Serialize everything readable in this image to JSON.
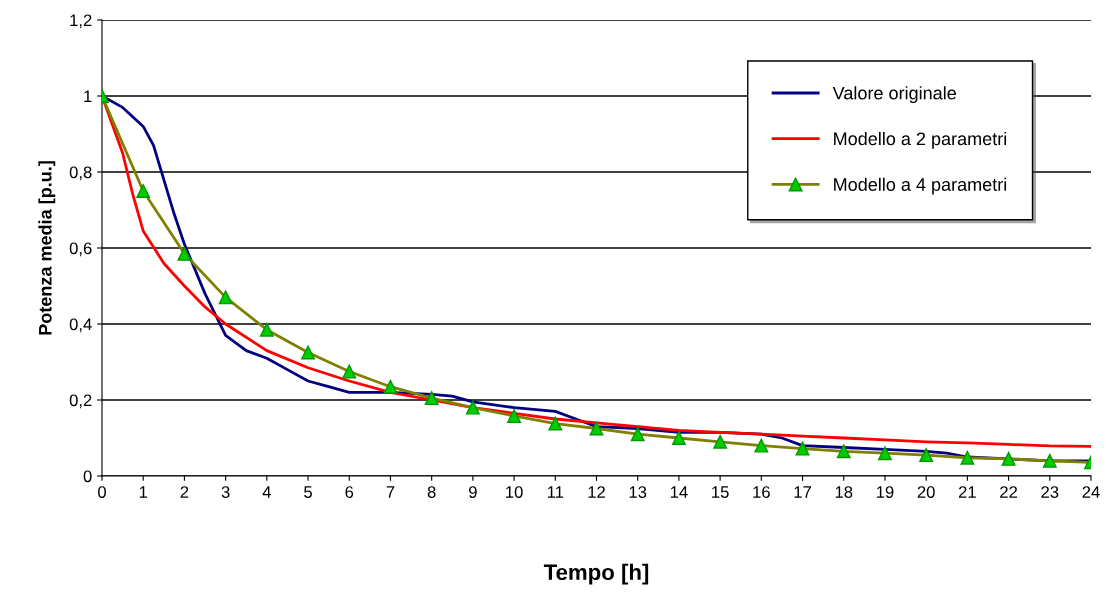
{
  "chart_data": {
    "type": "line",
    "xlabel": "Tempo [h]",
    "ylabel": "Potenza media [p.u.]",
    "xlim": [
      0,
      24
    ],
    "xticks": [
      0,
      1,
      2,
      3,
      4,
      5,
      6,
      7,
      8,
      9,
      10,
      11,
      12,
      13,
      14,
      15,
      16,
      17,
      18,
      19,
      20,
      21,
      22,
      23,
      24
    ],
    "ylim": [
      0,
      1.2
    ],
    "yticks": [
      {
        "value": 0,
        "label": "0"
      },
      {
        "value": 0.2,
        "label": "0,2"
      },
      {
        "value": 0.4,
        "label": "0,4"
      },
      {
        "value": 0.6,
        "label": "0,6"
      },
      {
        "value": 0.8,
        "label": "0,8"
      },
      {
        "value": 1,
        "label": "1"
      },
      {
        "value": 1.2,
        "label": "1,2"
      }
    ],
    "grid": "y",
    "legend": "top right",
    "series": [
      {
        "name": "Valore originale",
        "color": "#000080",
        "marker": "none",
        "x": [
          0,
          0.5,
          1,
          1.25,
          1.5,
          1.75,
          2,
          2.5,
          3,
          3.5,
          4,
          4.5,
          5,
          5.5,
          6,
          7,
          8,
          8.5,
          9,
          10,
          11,
          11.5,
          12,
          13,
          14,
          15,
          16,
          16.5,
          17,
          18,
          19,
          20,
          20.5,
          21,
          22,
          23,
          24
        ],
        "values": [
          1,
          0.97,
          0.92,
          0.87,
          0.78,
          0.69,
          0.61,
          0.48,
          0.37,
          0.33,
          0.31,
          0.28,
          0.25,
          0.235,
          0.22,
          0.22,
          0.215,
          0.21,
          0.195,
          0.18,
          0.17,
          0.15,
          0.13,
          0.125,
          0.115,
          0.115,
          0.11,
          0.1,
          0.08,
          0.075,
          0.07,
          0.065,
          0.06,
          0.05,
          0.045,
          0.04,
          0.04
        ]
      },
      {
        "name": "Modello a 2 parametri",
        "color": "#ff0000",
        "marker": "none",
        "x": [
          0,
          0.5,
          0.75,
          1,
          1.5,
          2,
          2.5,
          3,
          4,
          5,
          6,
          7,
          8,
          9,
          10,
          11,
          12,
          13,
          14,
          15,
          16,
          17,
          18,
          19,
          20,
          21,
          22,
          23,
          24
        ],
        "values": [
          1,
          0.85,
          0.74,
          0.645,
          0.56,
          0.5,
          0.445,
          0.4,
          0.33,
          0.285,
          0.25,
          0.22,
          0.2,
          0.18,
          0.165,
          0.15,
          0.14,
          0.13,
          0.12,
          0.115,
          0.11,
          0.105,
          0.1,
          0.095,
          0.09,
          0.087,
          0.083,
          0.079,
          0.078
        ]
      },
      {
        "name": "Modello a 4 parametri",
        "color": "#808000",
        "marker": "triangle",
        "x": [
          0,
          1,
          2,
          3,
          4,
          5,
          6,
          7,
          8,
          9,
          10,
          11,
          12,
          13,
          14,
          15,
          16,
          17,
          18,
          19,
          20,
          21,
          22,
          23,
          24
        ],
        "values": [
          1,
          0.75,
          0.585,
          0.47,
          0.385,
          0.325,
          0.275,
          0.235,
          0.205,
          0.18,
          0.158,
          0.138,
          0.125,
          0.11,
          0.1,
          0.09,
          0.08,
          0.072,
          0.065,
          0.06,
          0.055,
          0.048,
          0.045,
          0.04,
          0.036
        ]
      }
    ]
  }
}
